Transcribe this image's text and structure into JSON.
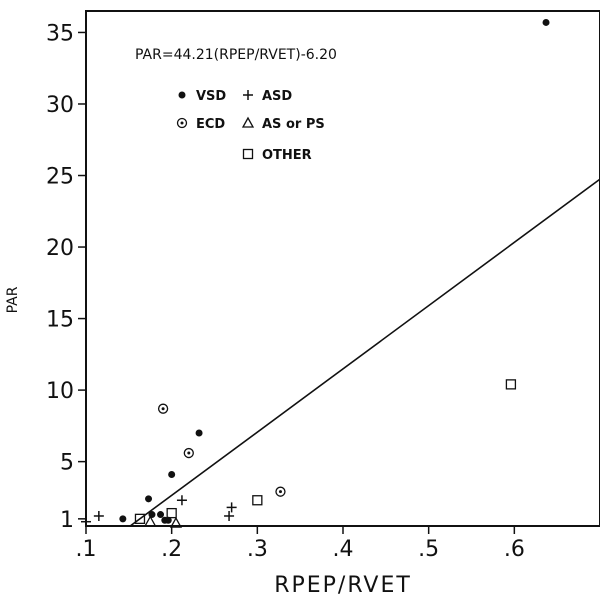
{
  "chart_data": {
    "type": "scatter",
    "xlabel": "RPEP/RVET",
    "ylabel": "PAR",
    "xlim": [
      0.1,
      0.7
    ],
    "ylim": [
      0.5,
      36.5
    ],
    "x_ticks": [
      0.1,
      0.2,
      0.3,
      0.4,
      0.5,
      0.6
    ],
    "x_tick_labels": [
      ".1",
      ".2",
      ".3",
      ".4",
      ".5",
      ".6"
    ],
    "y_ticks": [
      1,
      5,
      10,
      15,
      20,
      25,
      30,
      35
    ],
    "y_tick_labels": [
      "1",
      "5",
      "10",
      "15",
      "20",
      "25",
      "30",
      "35"
    ],
    "annotation": "PAR=44.21(RPEP/RVET)-6.20",
    "regression": {
      "slope": 44.21,
      "intercept": -6.2
    },
    "legend": [
      {
        "label": "VSD",
        "marker": "filled-circle"
      },
      {
        "label": "ASD",
        "marker": "plus"
      },
      {
        "label": "ECD",
        "marker": "circle-dot"
      },
      {
        "label": "AS or PS",
        "marker": "triangle"
      },
      {
        "label": "OTHER",
        "marker": "square"
      }
    ],
    "series": [
      {
        "name": "VSD",
        "marker": "filled-circle",
        "points": [
          [
            0.143,
            1.0
          ],
          [
            0.173,
            2.4
          ],
          [
            0.177,
            1.3
          ],
          [
            0.187,
            1.3
          ],
          [
            0.192,
            0.9
          ],
          [
            0.196,
            0.9
          ],
          [
            0.2,
            4.1
          ],
          [
            0.232,
            7.0
          ],
          [
            0.637,
            35.7
          ]
        ]
      },
      {
        "name": "ASD",
        "marker": "plus",
        "points": [
          [
            0.1,
            0.8
          ],
          [
            0.115,
            1.2
          ],
          [
            0.212,
            2.3
          ],
          [
            0.267,
            1.2
          ],
          [
            0.27,
            1.8
          ]
        ]
      },
      {
        "name": "ECD",
        "marker": "circle-dot",
        "points": [
          [
            0.19,
            8.7
          ],
          [
            0.22,
            5.6
          ],
          [
            0.327,
            2.9
          ]
        ]
      },
      {
        "name": "AS or PS",
        "marker": "triangle",
        "points": [
          [
            0.175,
            0.8
          ],
          [
            0.205,
            0.7
          ]
        ]
      },
      {
        "name": "OTHER",
        "marker": "square",
        "points": [
          [
            0.163,
            1.0
          ],
          [
            0.2,
            1.4
          ],
          [
            0.3,
            2.3
          ],
          [
            0.596,
            10.4
          ]
        ]
      }
    ],
    "grid": false,
    "legend_position": "top-left"
  }
}
